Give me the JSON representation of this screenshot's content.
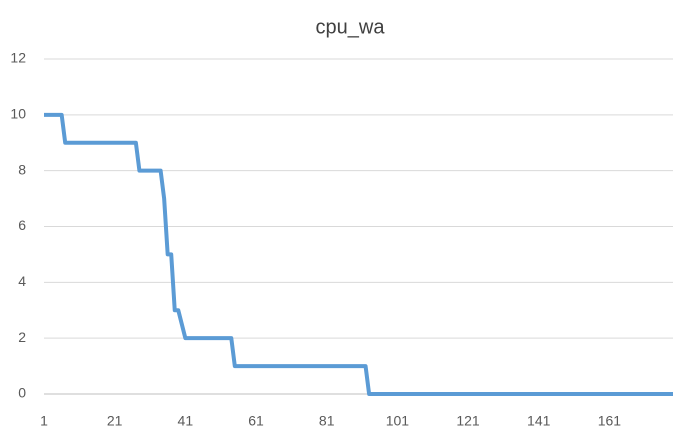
{
  "chart_data": {
    "type": "line",
    "title": "cpu_wa",
    "x": [
      1,
      6,
      7,
      27,
      28,
      34,
      35,
      36,
      37,
      38,
      39,
      41,
      54,
      55,
      92,
      93,
      179
    ],
    "series": [
      {
        "color": "#5b9bd5",
        "values": [
          10,
          10,
          9,
          9,
          8,
          8,
          7,
          5,
          5,
          3,
          3,
          2,
          2,
          1,
          1,
          0,
          0
        ]
      }
    ],
    "xlim": [
      1,
      179
    ],
    "xticks": [
      1,
      21,
      41,
      61,
      81,
      101,
      121,
      141,
      161
    ],
    "ylim": [
      0,
      12
    ],
    "yticks": [
      0,
      2,
      4,
      6,
      8,
      10,
      12
    ],
    "grid": true
  }
}
